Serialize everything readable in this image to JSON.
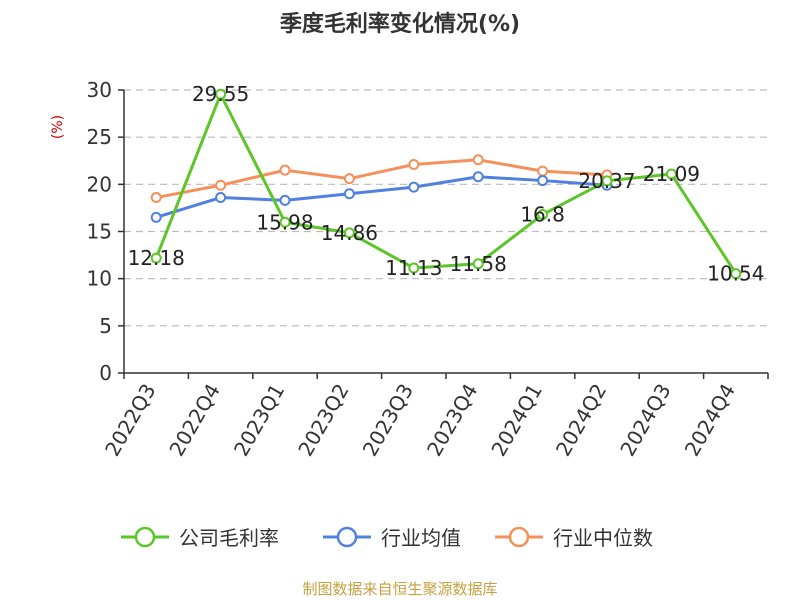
{
  "chart_data": {
    "type": "line",
    "title": "季度毛利率变化情况(%)",
    "ylabel": "(%)",
    "ylim": [
      0,
      30
    ],
    "yticks": [
      0,
      5,
      10,
      15,
      20,
      25,
      30
    ],
    "grid": true,
    "legend_position": "bottom",
    "categories": [
      "2022Q3",
      "2022Q4",
      "2023Q1",
      "2023Q2",
      "2023Q3",
      "2023Q4",
      "2024Q1",
      "2024Q2",
      "2024Q3",
      "2024Q4"
    ],
    "series": [
      {
        "name": "公司毛利率",
        "color": "#5cc527",
        "values": [
          12.18,
          29.55,
          15.98,
          14.86,
          11.13,
          11.58,
          16.8,
          20.37,
          21.09,
          10.54
        ],
        "labels": [
          "12.18",
          "29.55",
          "15.98",
          "14.86",
          "11.13",
          "11.58",
          "16.8",
          "20.37",
          "21.09",
          "10.54"
        ]
      },
      {
        "name": "行业均值",
        "color": "#5081e0",
        "values": [
          16.5,
          18.6,
          18.3,
          19.0,
          19.7,
          20.8,
          20.4,
          19.9,
          null,
          null
        ]
      },
      {
        "name": "行业中位数",
        "color": "#f5905a",
        "values": [
          18.6,
          19.9,
          21.5,
          20.6,
          22.1,
          22.6,
          21.4,
          21.0,
          null,
          null
        ]
      }
    ]
  },
  "footer": "制图数据来自恒生聚源数据库"
}
